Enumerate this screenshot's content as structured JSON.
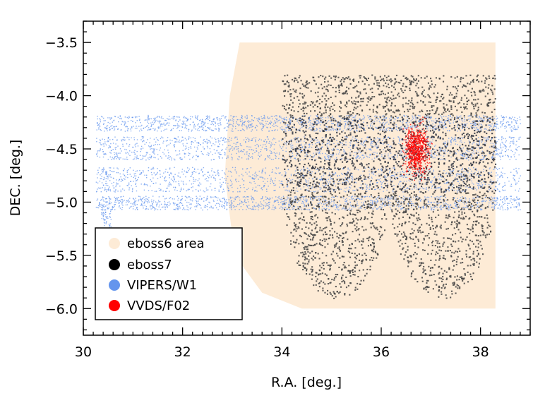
{
  "chart_data": {
    "type": "scatter",
    "title": "",
    "xlabel": "R.A. [deg.]",
    "ylabel": "DEC. [deg.]",
    "xlim": [
      30.0,
      39.0
    ],
    "ylim": [
      -6.25,
      -3.3
    ],
    "x_ticks": [
      30,
      32,
      34,
      36,
      38
    ],
    "y_ticks": [
      -3.5,
      -4.0,
      -4.5,
      -5.0,
      -5.5,
      -6.0
    ],
    "x_tick_labels": [
      "30",
      "32",
      "34",
      "36",
      "38"
    ],
    "y_tick_labels": [
      "−3.5",
      "−4.0",
      "−4.5",
      "−5.0",
      "−5.5",
      "−6.0"
    ],
    "grid": false,
    "legend_position": "bottom-left",
    "series": [
      {
        "name": "eboss6 area",
        "kind": "filled-region",
        "color": "#fdebd6",
        "outline": [
          [
            33.15,
            -3.5
          ],
          [
            38.3,
            -3.5
          ],
          [
            38.3,
            -6.0
          ],
          [
            34.4,
            -6.0
          ],
          [
            33.6,
            -5.85
          ],
          [
            33.05,
            -5.5
          ],
          [
            32.85,
            -4.75
          ],
          [
            32.95,
            -4.0
          ]
        ]
      },
      {
        "name": "eboss7",
        "kind": "points",
        "color": "#000000",
        "count": 3200,
        "lobes": [
          {
            "ra_min": 34.0,
            "ra_max": 36.15,
            "dec_top": -3.8,
            "dec_bottom": -5.9
          },
          {
            "ra_min": 36.15,
            "ra_max": 38.3,
            "dec_top": -3.8,
            "dec_bottom": -5.9
          }
        ]
      },
      {
        "name": "VIPERS/W1",
        "kind": "points",
        "color": "#6495ed",
        "count": 5200,
        "ra_range": [
          30.25,
          38.8
        ],
        "dec_stripes": [
          [
            -4.18,
            -4.33
          ],
          [
            -4.38,
            -4.6
          ],
          [
            -4.67,
            -4.9
          ],
          [
            -4.94,
            -5.07
          ]
        ],
        "extension": {
          "ra_range": [
            30.35,
            30.55
          ],
          "dec_range": [
            -5.07,
            -5.3
          ]
        }
      },
      {
        "name": "VVDS/F02",
        "kind": "points",
        "color": "#ff0000",
        "count": 700,
        "center": [
          36.7,
          -4.5
        ],
        "extent": [
          0.35,
          0.32
        ]
      }
    ]
  },
  "legend": {
    "items": [
      {
        "label": "eboss6 area",
        "color": "#fdebd6"
      },
      {
        "label": "eboss7",
        "color": "#000000"
      },
      {
        "label": "VIPERS/W1",
        "color": "#6495ed"
      },
      {
        "label": "VVDS/F02",
        "color": "#ff0000"
      }
    ]
  }
}
